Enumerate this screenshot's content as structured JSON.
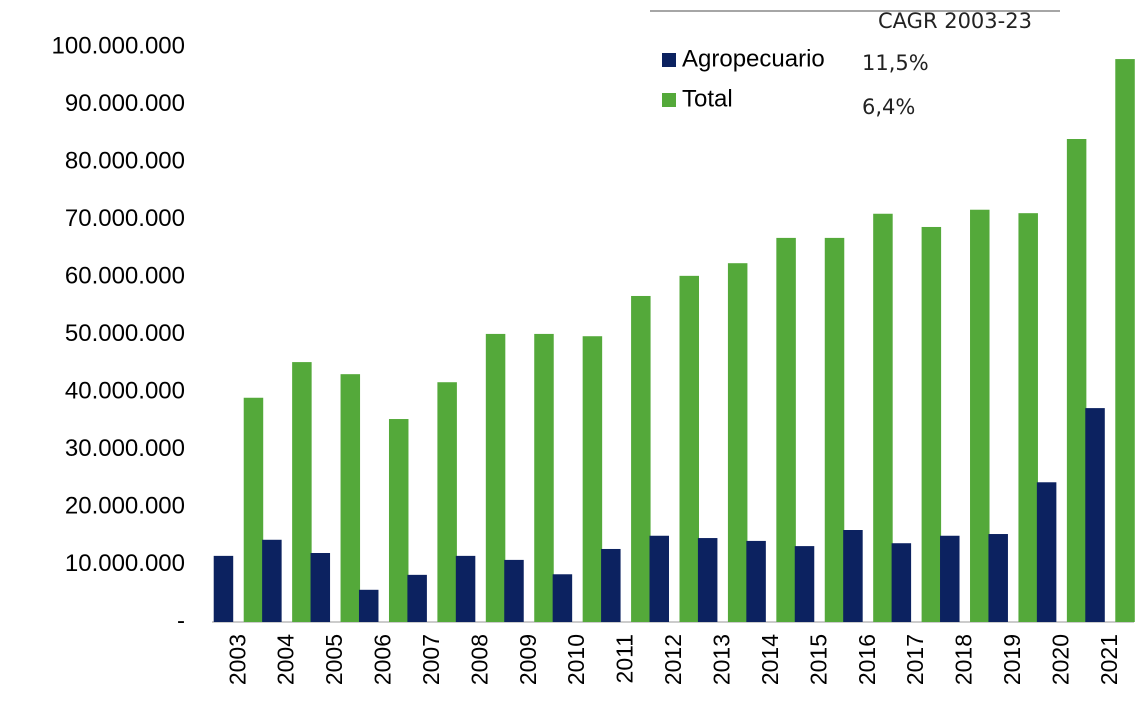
{
  "chart_data": {
    "type": "bar",
    "legend_header": "CAGR 2003-23",
    "categories": [
      "2003",
      "2004",
      "2005",
      "2006",
      "2007",
      "2008",
      "2009",
      "2010",
      "2011",
      "2012",
      "2013",
      "2014",
      "2015",
      "2016",
      "2017",
      "2018",
      "2019",
      "2020",
      "2021"
    ],
    "series": [
      {
        "name": "Agropecuario",
        "color": "#0c2260",
        "cagr": "11,5%",
        "values": [
          11500000,
          14300000,
          12000000,
          5600000,
          8200000,
          11500000,
          10800000,
          8300000,
          12700000,
          15000000,
          14600000,
          14100000,
          13200000,
          16000000,
          13700000,
          15000000,
          15300000,
          24300000,
          37200000
        ]
      },
      {
        "name": "Total",
        "color": "#54a93a",
        "cagr": "6,4%",
        "values": [
          39000000,
          45200000,
          43100000,
          35300000,
          41700000,
          50100000,
          50100000,
          49700000,
          56700000,
          60200000,
          62400000,
          66800000,
          66800000,
          71000000,
          68700000,
          71700000,
          71100000,
          84000000,
          97900000
        ]
      }
    ],
    "ylim": [
      0,
      100000000
    ],
    "yticks": [
      {
        "value": 0,
        "label": "-"
      },
      {
        "value": 10000000,
        "label": "10.000.000"
      },
      {
        "value": 20000000,
        "label": "20.000.000"
      },
      {
        "value": 30000000,
        "label": "30.000.000"
      },
      {
        "value": 40000000,
        "label": "40.000.000"
      },
      {
        "value": 50000000,
        "label": "50.000.000"
      },
      {
        "value": 60000000,
        "label": "60.000.000"
      },
      {
        "value": 70000000,
        "label": "70.000.000"
      },
      {
        "value": 80000000,
        "label": "80.000.000"
      },
      {
        "value": 90000000,
        "label": "90.000.000"
      },
      {
        "value": 100000000,
        "label": "100.000.000"
      }
    ],
    "grid": false
  }
}
